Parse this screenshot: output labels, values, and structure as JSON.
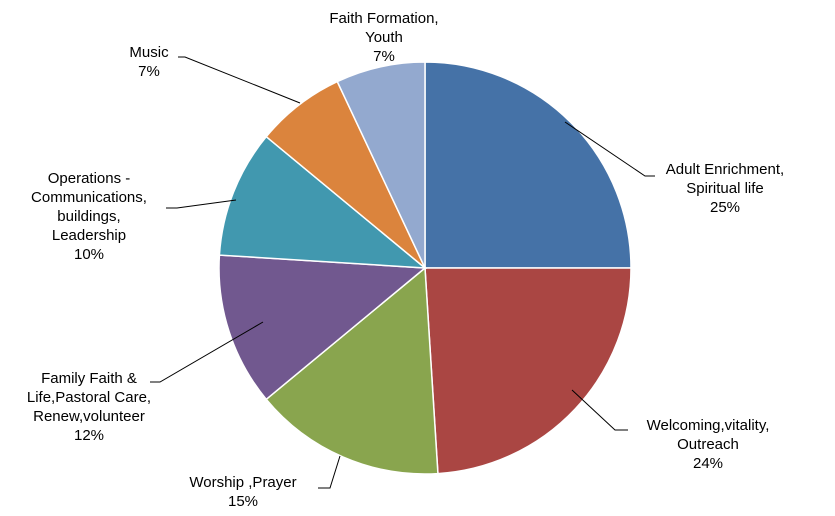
{
  "chart_data": {
    "type": "pie",
    "title": "",
    "legend": "none",
    "slices": [
      {
        "label": "Adult Enrichment, Spiritual life",
        "value": 25,
        "value_label": "25%",
        "color": "#4572A7"
      },
      {
        "label": "Welcoming,vitality, Outreach",
        "value": 24,
        "value_label": "24%",
        "color": "#AA4643"
      },
      {
        "label": "Worship ,Prayer",
        "value": 15,
        "value_label": "15%",
        "color": "#89A54E"
      },
      {
        "label": "Family Faith & Life,Pastoral Care, Renew,volunteer",
        "value": 12,
        "value_label": "12%",
        "color": "#71588F"
      },
      {
        "label": "Operations - Communications, buildings, Leadership",
        "value": 10,
        "value_label": "10%",
        "color": "#4198AF"
      },
      {
        "label": "Music",
        "value": 7,
        "value_label": "7%",
        "color": "#DB843D"
      },
      {
        "label": "Faith Formation, Youth",
        "value": 7,
        "value_label": "7%",
        "color": "#93A9CF"
      }
    ]
  }
}
